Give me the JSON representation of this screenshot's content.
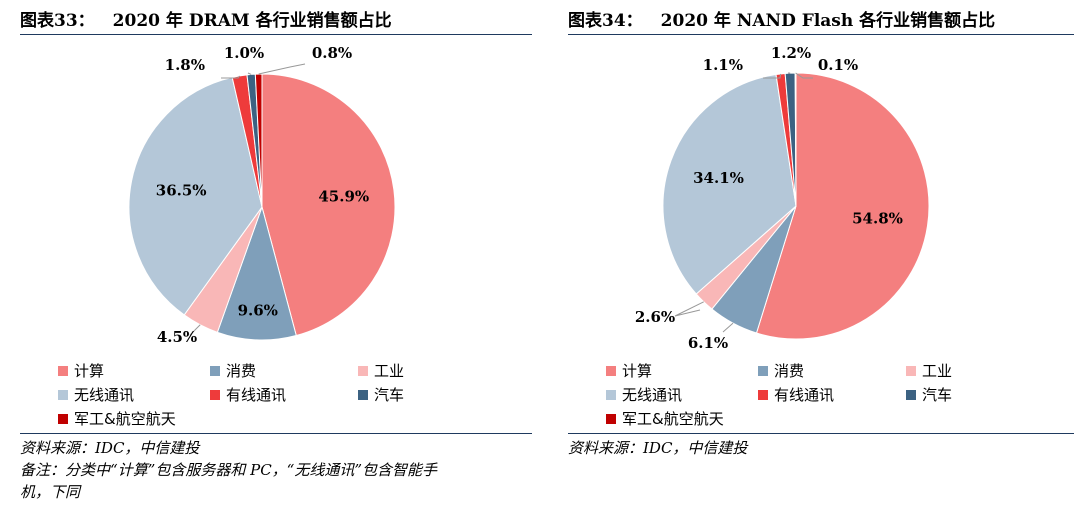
{
  "legend_categories": [
    "计算",
    "消费",
    "工业",
    "无线通讯",
    "有线通讯",
    "汽车",
    "军工&航空航天"
  ],
  "colors": {
    "计算": "#f47f7f",
    "消费": "#7f9fba",
    "工业": "#f9b7b7",
    "无线通讯": "#b4c7d8",
    "有线通讯": "#ee3b3b",
    "汽车": "#3c6282",
    "军工&航空航天": "#c00000"
  },
  "chart_data": [
    {
      "type": "pie",
      "fig_label": "图表33：",
      "title": "2020 年 DRAM 各行业销售额占比",
      "categories": [
        "计算",
        "消费",
        "工业",
        "无线通讯",
        "有线通讯",
        "汽车",
        "军工&航空航天"
      ],
      "values": [
        45.9,
        9.6,
        4.5,
        36.5,
        1.8,
        1.0,
        0.8
      ],
      "labels": [
        "45.9%",
        "9.6%",
        "4.5%",
        "36.5%",
        "1.8%",
        "1.0%",
        "0.8%"
      ],
      "legend_placement": "bottom",
      "source": "资料来源：IDC，中信建投",
      "note_line1": "备注：分类中“计算”包含服务器和 PC，“无线通讯”包含智能手",
      "note_line2": "机，下同"
    },
    {
      "type": "pie",
      "fig_label": "图表34：",
      "title": "2020 年 NAND Flash 各行业销售额占比",
      "categories": [
        "计算",
        "消费",
        "工业",
        "无线通讯",
        "有线通讯",
        "汽车",
        "军工&航空航天"
      ],
      "values": [
        54.8,
        6.1,
        2.6,
        34.1,
        1.1,
        1.2,
        0.1
      ],
      "labels": [
        "54.8%",
        "6.1%",
        "2.6%",
        "34.1%",
        "1.1%",
        "1.2%",
        "0.1%"
      ],
      "legend_placement": "bottom",
      "source": "资料来源：IDC，中信建投"
    }
  ]
}
